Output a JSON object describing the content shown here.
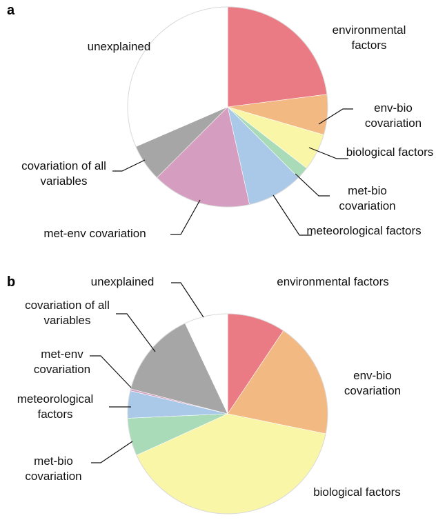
{
  "chart_data": [
    {
      "type": "pie",
      "panel": "a",
      "categories": [
        "environmental factors",
        "env-bio covariation",
        "biological factors",
        "met-bio covariation",
        "meteorological factors",
        "met-env covariation",
        "covariation of all variables",
        "unexplained"
      ],
      "values": [
        23,
        6.5,
        6,
        2,
        9,
        16,
        6,
        31.5
      ],
      "colors": [
        "#ea7a84",
        "#f3b982",
        "#f9f6a8",
        "#aadbb9",
        "#aac8e7",
        "#d59dbf",
        "#a6a6a6",
        "#ffffff"
      ]
    },
    {
      "type": "pie",
      "panel": "b",
      "categories": [
        "environmental factors",
        "env-bio covariation",
        "biological factors",
        "met-bio covariation",
        "meteorological factors",
        "met-env covariation",
        "covariation of all variables",
        "unexplained"
      ],
      "values": [
        9.4,
        18.8,
        40,
        6.1,
        4.4,
        0.3,
        14,
        7
      ],
      "colors": [
        "#ea7a84",
        "#f3b982",
        "#f9f6a8",
        "#aadbb9",
        "#aac8e7",
        "#d59dbf",
        "#a6a6a6",
        "#ffffff"
      ]
    }
  ]
}
